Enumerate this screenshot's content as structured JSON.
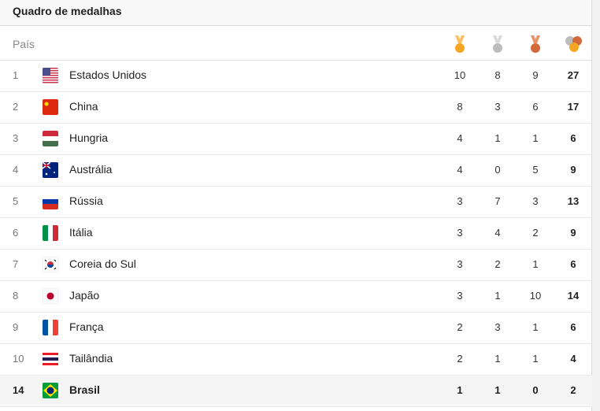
{
  "title": "Quadro de medalhas",
  "columns": {
    "country": "País",
    "gold": "gold-medal-icon",
    "silver": "silver-medal-icon",
    "bronze": "bronze-medal-icon",
    "total": "total-medals-icon"
  },
  "colors": {
    "gold": "#f5a623",
    "silver": "#bdbdbd",
    "bronze": "#d2693b"
  },
  "rows": [
    {
      "rank": "1",
      "country": "Estados Unidos",
      "flag": "us",
      "gold": "10",
      "silver": "8",
      "bronze": "9",
      "total": "27"
    },
    {
      "rank": "2",
      "country": "China",
      "flag": "cn",
      "gold": "8",
      "silver": "3",
      "bronze": "6",
      "total": "17"
    },
    {
      "rank": "3",
      "country": "Hungria",
      "flag": "hu",
      "gold": "4",
      "silver": "1",
      "bronze": "1",
      "total": "6"
    },
    {
      "rank": "4",
      "country": "Austrália",
      "flag": "au",
      "gold": "4",
      "silver": "0",
      "bronze": "5",
      "total": "9"
    },
    {
      "rank": "5",
      "country": "Rússia",
      "flag": "ru",
      "gold": "3",
      "silver": "7",
      "bronze": "3",
      "total": "13"
    },
    {
      "rank": "6",
      "country": "Itália",
      "flag": "it",
      "gold": "3",
      "silver": "4",
      "bronze": "2",
      "total": "9"
    },
    {
      "rank": "7",
      "country": "Coreia do Sul",
      "flag": "kr",
      "gold": "3",
      "silver": "2",
      "bronze": "1",
      "total": "6"
    },
    {
      "rank": "8",
      "country": "Japão",
      "flag": "jp",
      "gold": "3",
      "silver": "1",
      "bronze": "10",
      "total": "14"
    },
    {
      "rank": "9",
      "country": "França",
      "flag": "fr",
      "gold": "2",
      "silver": "3",
      "bronze": "1",
      "total": "6"
    },
    {
      "rank": "10",
      "country": "Tailândia",
      "flag": "th",
      "gold": "2",
      "silver": "1",
      "bronze": "1",
      "total": "4"
    },
    {
      "rank": "14",
      "country": "Brasil",
      "flag": "br",
      "gold": "1",
      "silver": "1",
      "bronze": "0",
      "total": "2",
      "highlighted": true
    }
  ]
}
